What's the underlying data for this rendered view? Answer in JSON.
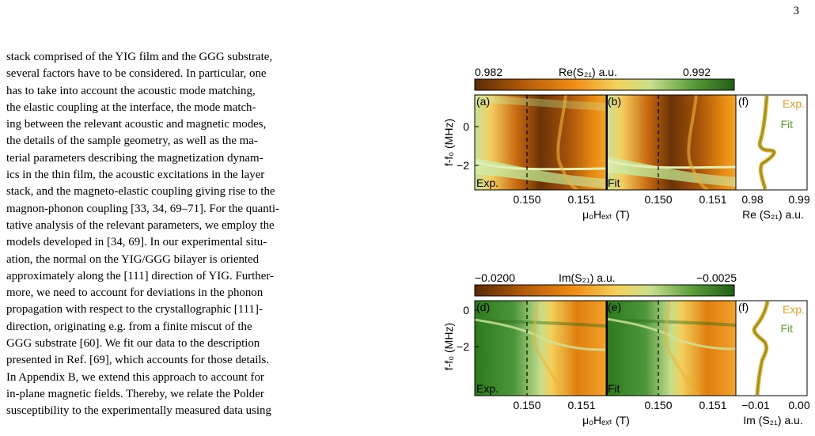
{
  "page": {
    "number": "3"
  },
  "text": {
    "lines": [
      "stack comprised of the YIG film and the GGG substrate,",
      "several factors have to be considered. In particular, one",
      "has to take into account the acoustic mode matching,",
      "the elastic coupling at the interface, the mode match-",
      "ing between the relevant acoustic and magnetic modes,",
      "the details of the sample geometry, as well as the ma-",
      "terial parameters describing the magnetization dynam-",
      "ics in the thin film, the acoustic excitations in the layer",
      "stack, and the magneto-elastic coupling giving rise to the",
      "magnon-phonon coupling [33, 34, 69–71]. For the quanti-",
      "tative analysis of the relevant parameters, we employ the",
      "models developed in [34, 69]. In our experimental situ-",
      "ation, the normal on the YIG/GGG bilayer is oriented",
      "approximately along the [111] direction of YIG. Further-",
      "more, we need to account for deviations in the phonon",
      "propagation with respect to the crystallographic [111]-",
      "direction, originating e.g. from a finite miscut of the",
      "GGG substrate [60]. We fit our data to the description",
      "presented in Ref. [69], which accounts for those details.",
      "In Appendix B, we extend this approach to account for",
      "in-plane magnetic fields. Thereby, we relate the Polder",
      "susceptibility to the experimentally measured data using"
    ]
  },
  "figure": {
    "top": {
      "colorbar": {
        "min_label": "0.982",
        "title": "Re(S₂₁) a.u.",
        "max_label": "0.992"
      },
      "panel_labels": [
        "(a)",
        "(b)",
        "(f)"
      ],
      "corner_labels": [
        "Exp.",
        "Fit"
      ],
      "y_label": "f-f₀ (MHz)",
      "y_ticks": [
        "0",
        "−2"
      ],
      "x_ticks": [
        "0.150",
        "0.151",
        "0.150",
        "0.151"
      ],
      "x_label": "μ₀Hₑₓₜ (T)",
      "side_x_ticks": [
        "0.98",
        "0.99"
      ],
      "side_x_label": "Re (S₂₁) a.u.",
      "legend": [
        "Exp.",
        "Fit"
      ]
    },
    "bottom": {
      "colorbar": {
        "min_label": "−0.0200",
        "title": "Im(S₂₁) a.u.",
        "max_label": "−0.0025"
      },
      "panel_labels": [
        "(d)",
        "(e)",
        "(f)"
      ],
      "corner_labels": [
        "Exp.",
        "Fit"
      ],
      "y_label": "f-f₀ (MHz)",
      "y_ticks": [
        "0",
        "−2"
      ],
      "x_ticks": [
        "0.150",
        "0.151",
        "0.150",
        "0.151"
      ],
      "x_label": "μ₀Hₑₓₜ (T)",
      "side_x_ticks": [
        "−0.01",
        "0.00"
      ],
      "side_x_label": "Im (S₂₁) a.u.",
      "legend": [
        "Exp.",
        "Fit"
      ]
    },
    "colors": {
      "orange": "#f08c14",
      "green": "#3b8c1e",
      "dark_brown": "#5a2d08",
      "legend_orange": "#f39a1e",
      "legend_green": "#59a624"
    }
  }
}
